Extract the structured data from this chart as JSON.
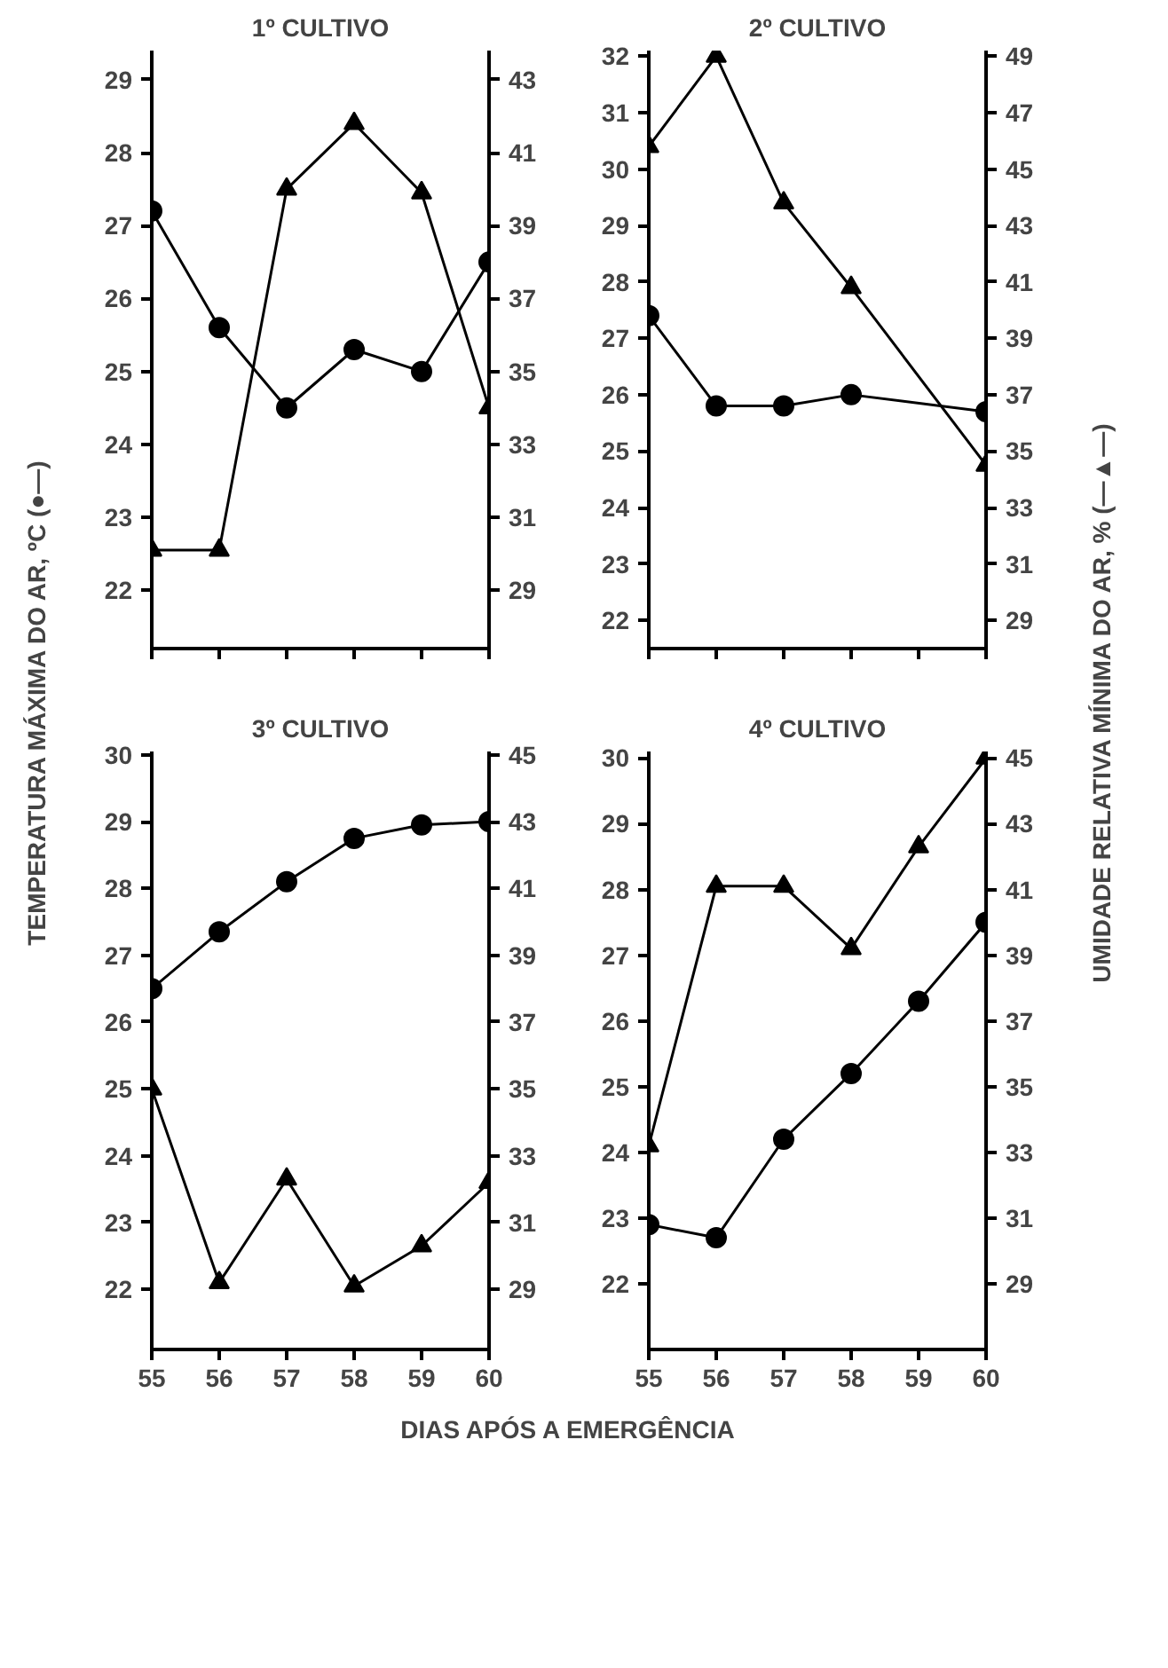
{
  "chart_data": [
    {
      "type": "line",
      "title": "1º CULTIVO",
      "ylabel": "TEMPERATURA MÁXIMA DO AR, ºC (●—)",
      "x": [
        55,
        56,
        57,
        58,
        59,
        60
      ],
      "xlim": [
        55,
        60
      ],
      "xticks": [
        {
          "value": 55,
          "label": null
        },
        {
          "value": 56,
          "label": null
        },
        {
          "value": 57,
          "label": null
        },
        {
          "value": 58,
          "label": null
        },
        {
          "value": 59,
          "label": null
        },
        {
          "value": 60,
          "label": null
        }
      ],
      "ylim": [
        21.2,
        29.4
      ],
      "yticks": [
        22,
        23,
        24,
        25,
        26,
        27,
        28,
        29
      ],
      "y2lim": [
        27.4,
        43.8
      ],
      "y2ticks": [
        29,
        31,
        33,
        35,
        37,
        39,
        41,
        43
      ],
      "tick_labels": "y",
      "grid": false,
      "series": [
        {
          "color": "#000000",
          "marker": "circle",
          "values": [
            27.2,
            25.6,
            24.5,
            25.3,
            25.0,
            26.5
          ]
        },
        {
          "color": "#000000",
          "marker": "triangle",
          "axis": "y2",
          "values": [
            30.1,
            30.1,
            40.0,
            41.8,
            39.9,
            34.0
          ]
        }
      ]
    },
    {
      "type": "line",
      "title": "2º CULTIVO",
      "y2label": "UMIDADE RELATIVA MÍNIMA DO AR, % (—▲—)",
      "x": [
        55,
        56,
        57,
        58,
        59,
        60
      ],
      "xlim": [
        55,
        60
      ],
      "xticks": [
        {
          "value": 55,
          "label": null
        },
        {
          "value": 56,
          "label": null
        },
        {
          "value": 57,
          "label": null
        },
        {
          "value": 58,
          "label": null
        },
        {
          "value": 59,
          "label": null
        },
        {
          "value": 60,
          "label": null
        }
      ],
      "ylim": [
        21.5,
        32.1
      ],
      "yticks": [
        22,
        23,
        24,
        25,
        26,
        27,
        28,
        29,
        30,
        31,
        32
      ],
      "y2lim": [
        28,
        49.2
      ],
      "y2ticks": [
        29,
        31,
        33,
        35,
        37,
        39,
        41,
        43,
        45,
        47,
        49
      ],
      "tick_labels": "y",
      "grid": false,
      "series": [
        {
          "color": "#000000",
          "marker": "circle",
          "values": [
            27.4,
            25.8,
            25.8,
            26.0,
            null,
            25.7
          ]
        },
        {
          "color": "#000000",
          "marker": "triangle",
          "axis": "y2",
          "values": [
            45.8,
            49.0,
            43.8,
            40.8,
            null,
            34.5
          ]
        }
      ]
    },
    {
      "type": "line",
      "title": "3º CULTIVO",
      "xlabel": "DIAS APÓS A EMERGÊNCIA",
      "x": [
        55,
        56,
        57,
        58,
        59,
        60
      ],
      "xlim": [
        55,
        60
      ],
      "xticks": [
        55,
        56,
        57,
        58,
        59,
        60
      ],
      "ylim": [
        21.1,
        30.05
      ],
      "yticks": [
        22,
        23,
        24,
        25,
        26,
        27,
        28,
        29,
        30
      ],
      "y2lim": [
        27.2,
        45.1
      ],
      "y2ticks": [
        29,
        31,
        33,
        35,
        37,
        39,
        41,
        43,
        45
      ],
      "grid": false,
      "series": [
        {
          "color": "#000000",
          "marker": "circle",
          "values": [
            26.5,
            27.35,
            28.1,
            28.75,
            28.95,
            29.0
          ]
        },
        {
          "color": "#000000",
          "marker": "triangle",
          "axis": "y2",
          "values": [
            35.0,
            29.2,
            32.3,
            29.1,
            30.3,
            32.2
          ]
        }
      ]
    },
    {
      "type": "line",
      "title": "4º CULTIVO",
      "x": [
        55,
        56,
        57,
        58,
        59,
        60
      ],
      "xlim": [
        55,
        60
      ],
      "xticks": [
        55,
        56,
        57,
        58,
        59,
        60
      ],
      "ylim": [
        21.0,
        30.1
      ],
      "yticks": [
        22,
        23,
        24,
        25,
        26,
        27,
        28,
        29,
        30
      ],
      "y2lim": [
        27,
        45.2
      ],
      "y2ticks": [
        29,
        31,
        33,
        35,
        37,
        39,
        41,
        43,
        45
      ],
      "grid": false,
      "series": [
        {
          "color": "#000000",
          "marker": "circle",
          "values": [
            22.9,
            22.7,
            24.2,
            25.2,
            26.3,
            27.5
          ]
        },
        {
          "color": "#000000",
          "marker": "triangle",
          "axis": "y2",
          "values": [
            33.2,
            41.1,
            41.1,
            39.2,
            42.3,
            45.0
          ]
        }
      ]
    }
  ]
}
